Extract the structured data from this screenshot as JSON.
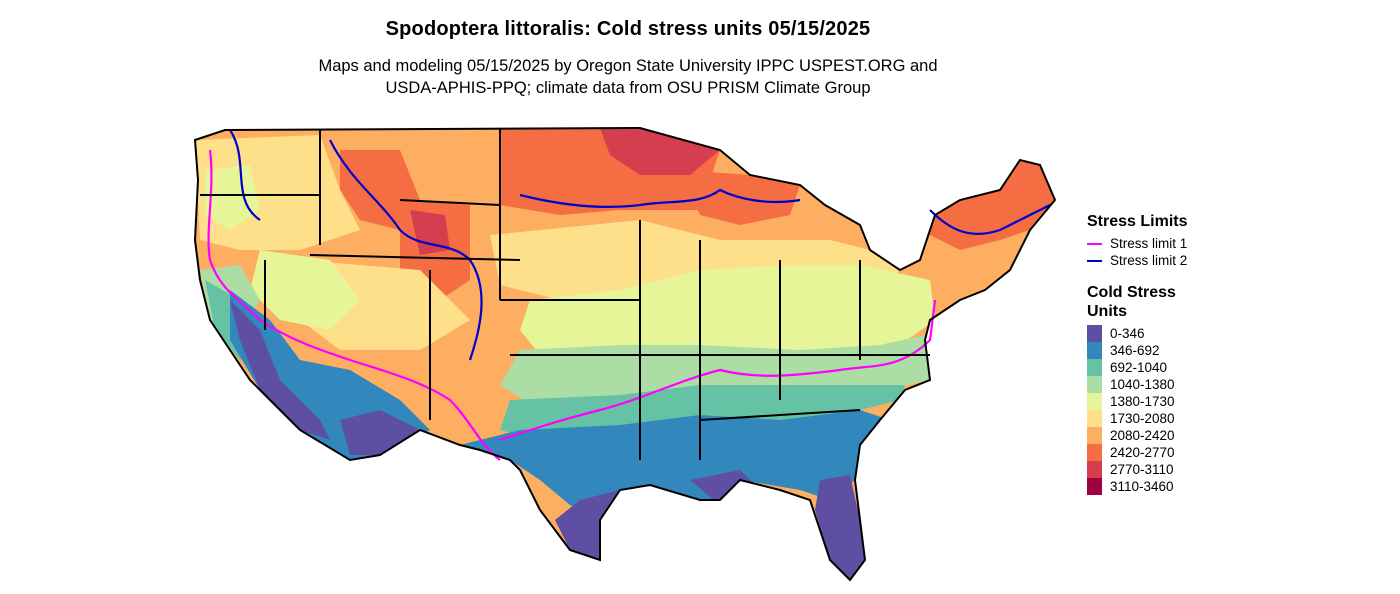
{
  "title": "Spodoptera littoralis: Cold stress units 05/15/2025",
  "subtitle": {
    "line1": "Maps and modeling 05/15/2025 by Oregon State University IPPC USPEST.ORG and",
    "line2": "USDA-APHIS-PPQ; climate data from OSU PRISM Climate Group"
  },
  "legend": {
    "stress_title": "Stress Limits",
    "stress_items": [
      {
        "label": "Stress limit 1",
        "color": "#ff00ff"
      },
      {
        "label": "Stress limit 2",
        "color": "#0000cc"
      }
    ],
    "units_title_line1": "Cold Stress",
    "units_title_line2": "Units",
    "units_items": [
      {
        "label": "0-346",
        "color": "#5e4fa2"
      },
      {
        "label": "346-692",
        "color": "#3288bd"
      },
      {
        "label": "692-1040",
        "color": "#66c2a5"
      },
      {
        "label": "1040-1380",
        "color": "#abdda4"
      },
      {
        "label": "1380-1730",
        "color": "#e6f598"
      },
      {
        "label": "1730-2080",
        "color": "#fee08b"
      },
      {
        "label": "2080-2420",
        "color": "#fdae61"
      },
      {
        "label": "2420-2770",
        "color": "#f46d43"
      },
      {
        "label": "2770-3110",
        "color": "#d53e4f"
      },
      {
        "label": "3110-3460",
        "color": "#9e0142"
      }
    ]
  }
}
